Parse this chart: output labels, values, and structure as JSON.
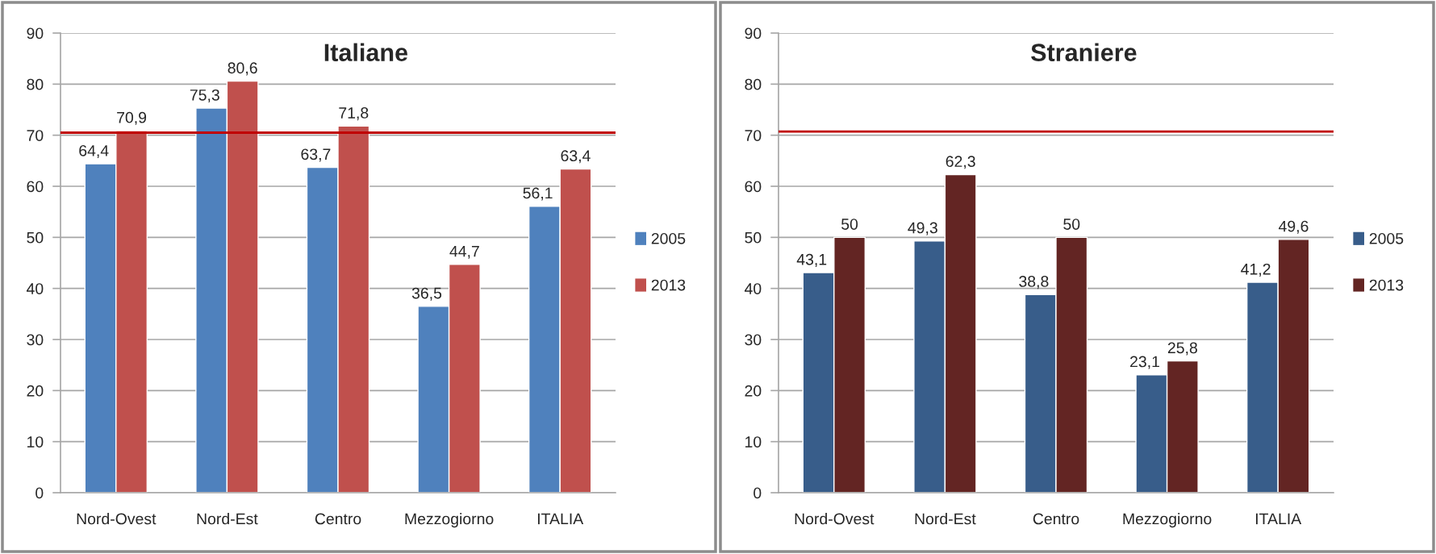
{
  "chart_data": [
    {
      "type": "bar",
      "title": "Italiane",
      "categories": [
        "Nord-Ovest",
        "Nord-Est",
        "Centro",
        "Mezzogiorno",
        "ITALIA"
      ],
      "series": [
        {
          "name": "2005",
          "color": "#4f81bd",
          "values": [
            64.4,
            75.3,
            63.7,
            36.5,
            56.1
          ],
          "value_labels": [
            "64,4",
            "75,3",
            "63,7",
            "36,5",
            "56,1"
          ]
        },
        {
          "name": "2013",
          "color": "#c0504d",
          "values": [
            70.9,
            80.6,
            71.8,
            44.7,
            63.4
          ],
          "value_labels": [
            "70,9",
            "80,6",
            "71,8",
            "44,7",
            "63,4"
          ]
        }
      ],
      "ylim": [
        0,
        90
      ],
      "yticks": [
        0,
        10,
        20,
        30,
        40,
        50,
        60,
        70,
        80,
        90
      ],
      "grid": "y",
      "legend": "right",
      "ref_lines": [
        {
          "axis": "y",
          "value": 70.5,
          "color": "#c00000"
        }
      ]
    },
    {
      "type": "bar",
      "title": "Straniere",
      "categories": [
        "Nord-Ovest",
        "Nord-Est",
        "Centro",
        "Mezzogiorno",
        "ITALIA"
      ],
      "series": [
        {
          "name": "2005",
          "color": "#385d8a",
          "values": [
            43.1,
            49.3,
            38.8,
            23.1,
            41.2
          ],
          "value_labels": [
            "43,1",
            "49,3",
            "38,8",
            "23,1",
            "41,2"
          ]
        },
        {
          "name": "2013",
          "color": "#632523",
          "values": [
            50,
            62.3,
            50,
            25.8,
            49.6
          ],
          "value_labels": [
            "50",
            "62,3",
            "50",
            "25,8",
            "49,6"
          ]
        }
      ],
      "ylim": [
        0,
        90
      ],
      "yticks": [
        0,
        10,
        20,
        30,
        40,
        50,
        60,
        70,
        80,
        90
      ],
      "grid": "y",
      "legend": "right",
      "ref_lines": [
        {
          "axis": "y",
          "value": 70.7,
          "color": "#c00000"
        }
      ]
    }
  ]
}
